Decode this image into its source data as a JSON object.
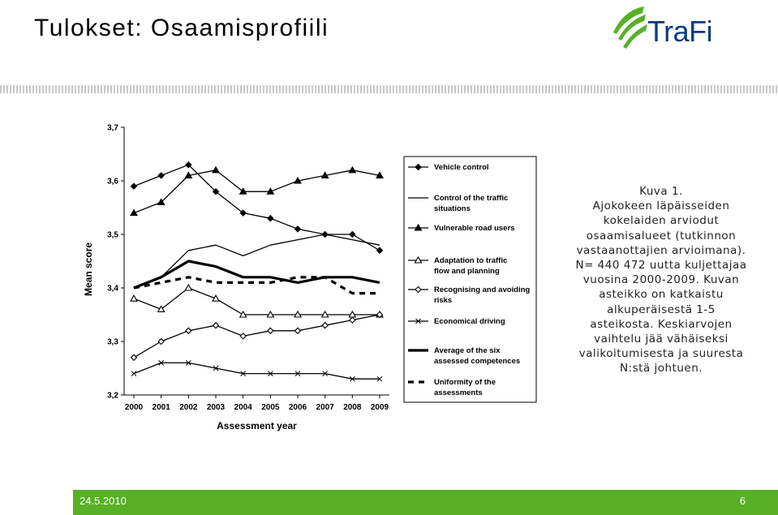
{
  "title": "Tulokset: Osaamisprofiili",
  "logo_text": "TraFi",
  "caption": {
    "lines": [
      "Kuva 1.",
      "Ajokokeen läpäisseiden",
      "kokelaiden arviodut",
      "osaamisalueet (tutkinnon",
      "vastaanottajien arvioimana).",
      "N= 440 472 uutta kuljettajaa",
      "vuosina 2000-2009. Kuvan",
      "asteikko on katkaistu",
      "alkuperäisestä 1-5",
      "asteikosta. Keskiarvojen",
      "vaihtelu jää vähäiseksi",
      "valikoitumisesta ja suuresta",
      "N:stä johtuen."
    ]
  },
  "footer": {
    "date": "24.5.2010",
    "page": "6",
    "color": "#58b027"
  },
  "chart_data": {
    "type": "line",
    "xlabel": "Assessment year",
    "ylabel": "Mean score",
    "ylim": [
      3.2,
      3.7
    ],
    "yticks": [
      "3,2",
      "3,3",
      "3,4",
      "3,5",
      "3,6",
      "3,7"
    ],
    "x": [
      "2000",
      "2001",
      "2002",
      "2003",
      "2004",
      "2005",
      "2006",
      "2007",
      "2008",
      "2009"
    ],
    "legend_position": "right",
    "series": [
      {
        "name": "Vehicle control",
        "marker": "diamond-filled",
        "dash": false,
        "width": 1.3,
        "values": [
          3.59,
          3.61,
          3.63,
          3.58,
          3.54,
          3.53,
          3.51,
          3.5,
          3.5,
          3.47
        ]
      },
      {
        "name": "Control of the traffic situations",
        "marker": "none",
        "dash": false,
        "width": 1.3,
        "values": [
          3.4,
          3.42,
          3.47,
          3.48,
          3.46,
          3.48,
          3.49,
          3.5,
          3.49,
          3.48
        ]
      },
      {
        "name": "Vulnerable road users",
        "marker": "triangle-filled",
        "dash": false,
        "width": 1.3,
        "values": [
          3.54,
          3.56,
          3.61,
          3.62,
          3.58,
          3.58,
          3.6,
          3.61,
          3.62,
          3.61
        ]
      },
      {
        "name": "Adaptation to traffic flow and planning",
        "marker": "triangle-open",
        "dash": false,
        "width": 1.3,
        "values": [
          3.38,
          3.36,
          3.4,
          3.38,
          3.35,
          3.35,
          3.35,
          3.35,
          3.35,
          3.35
        ]
      },
      {
        "name": "Recognising and avoiding risks",
        "marker": "diamond-open",
        "dash": false,
        "width": 1.3,
        "values": [
          3.27,
          3.3,
          3.32,
          3.33,
          3.31,
          3.32,
          3.32,
          3.33,
          3.34,
          3.35
        ]
      },
      {
        "name": "Economical driving",
        "marker": "x",
        "dash": false,
        "width": 1.3,
        "values": [
          3.24,
          3.26,
          3.26,
          3.25,
          3.24,
          3.24,
          3.24,
          3.24,
          3.23,
          3.23
        ]
      },
      {
        "name": "Average of the six assessed competences",
        "marker": "none",
        "dash": false,
        "width": 3.2,
        "values": [
          3.4,
          3.42,
          3.45,
          3.44,
          3.42,
          3.42,
          3.41,
          3.42,
          3.42,
          3.41
        ]
      },
      {
        "name": "Uniformity of the assessments",
        "marker": "none",
        "dash": true,
        "width": 3.2,
        "values": [
          3.4,
          3.41,
          3.42,
          3.41,
          3.41,
          3.41,
          3.42,
          3.42,
          3.39,
          3.39
        ]
      }
    ]
  }
}
